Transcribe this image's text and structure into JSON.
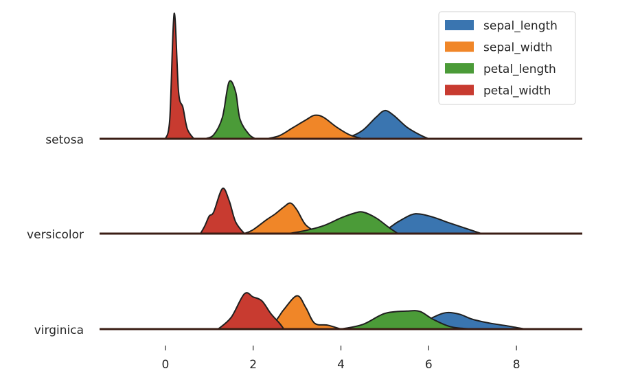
{
  "chart_data": {
    "type": "ridgeline-density",
    "title": "",
    "xlabel": "",
    "ylabel": "",
    "xlim": [
      -1.5,
      9.5
    ],
    "xticks": [
      0,
      2,
      4,
      6,
      8
    ],
    "grid": false,
    "legend_position": "top-right",
    "categories": [
      "setosa",
      "versicolor",
      "virginica"
    ],
    "series": [
      {
        "name": "sepal_length",
        "color": "#3a75b0"
      },
      {
        "name": "sepal_width",
        "color": "#f08628"
      },
      {
        "name": "petal_length",
        "color": "#4b9b38"
      },
      {
        "name": "petal_width",
        "color": "#c83b30"
      }
    ],
    "densities": {
      "setosa": {
        "sepal_length": [
          [
            3.9,
            0
          ],
          [
            4.2,
            0.05
          ],
          [
            4.5,
            0.22
          ],
          [
            4.8,
            0.55
          ],
          [
            5.0,
            0.72
          ],
          [
            5.2,
            0.6
          ],
          [
            5.5,
            0.3
          ],
          [
            5.8,
            0.1
          ],
          [
            6.0,
            0
          ]
        ],
        "sepal_width": [
          [
            2.3,
            0
          ],
          [
            2.6,
            0.08
          ],
          [
            2.9,
            0.28
          ],
          [
            3.2,
            0.48
          ],
          [
            3.4,
            0.6
          ],
          [
            3.6,
            0.55
          ],
          [
            3.9,
            0.3
          ],
          [
            4.2,
            0.1
          ],
          [
            4.5,
            0
          ]
        ],
        "petal_length": [
          [
            0.9,
            0
          ],
          [
            1.1,
            0.1
          ],
          [
            1.3,
            0.55
          ],
          [
            1.45,
            1.45
          ],
          [
            1.6,
            1.2
          ],
          [
            1.7,
            0.5
          ],
          [
            1.9,
            0.12
          ],
          [
            2.05,
            0
          ]
        ],
        "petal_width": [
          [
            0.0,
            0
          ],
          [
            0.1,
            0.5
          ],
          [
            0.2,
            3.2
          ],
          [
            0.3,
            1.2
          ],
          [
            0.4,
            0.8
          ],
          [
            0.5,
            0.25
          ],
          [
            0.65,
            0
          ]
        ]
      },
      "versicolor": {
        "sepal_length": [
          [
            4.7,
            0
          ],
          [
            5.0,
            0.08
          ],
          [
            5.3,
            0.3
          ],
          [
            5.6,
            0.48
          ],
          [
            5.8,
            0.5
          ],
          [
            6.1,
            0.42
          ],
          [
            6.4,
            0.3
          ],
          [
            6.8,
            0.15
          ],
          [
            7.2,
            0
          ]
        ],
        "sepal_width": [
          [
            1.8,
            0
          ],
          [
            2.0,
            0.1
          ],
          [
            2.3,
            0.35
          ],
          [
            2.5,
            0.5
          ],
          [
            2.7,
            0.68
          ],
          [
            2.85,
            0.78
          ],
          [
            3.0,
            0.6
          ],
          [
            3.2,
            0.22
          ],
          [
            3.5,
            0
          ]
        ],
        "petal_length": [
          [
            2.8,
            0
          ],
          [
            3.2,
            0.08
          ],
          [
            3.6,
            0.2
          ],
          [
            4.0,
            0.4
          ],
          [
            4.3,
            0.52
          ],
          [
            4.5,
            0.55
          ],
          [
            4.8,
            0.4
          ],
          [
            5.1,
            0.15
          ],
          [
            5.3,
            0
          ]
        ],
        "petal_width": [
          [
            0.8,
            0
          ],
          [
            0.9,
            0.2
          ],
          [
            1.0,
            0.45
          ],
          [
            1.1,
            0.55
          ],
          [
            1.3,
            1.15
          ],
          [
            1.45,
            0.85
          ],
          [
            1.6,
            0.3
          ],
          [
            1.8,
            0
          ]
        ]
      },
      "virginica": {
        "sepal_length": [
          [
            5.4,
            0
          ],
          [
            5.8,
            0.1
          ],
          [
            6.1,
            0.3
          ],
          [
            6.4,
            0.42
          ],
          [
            6.7,
            0.38
          ],
          [
            7.0,
            0.25
          ],
          [
            7.4,
            0.15
          ],
          [
            7.8,
            0.08
          ],
          [
            8.2,
            0
          ]
        ],
        "sepal_width": [
          [
            2.2,
            0
          ],
          [
            2.5,
            0.2
          ],
          [
            2.7,
            0.5
          ],
          [
            3.0,
            0.85
          ],
          [
            3.2,
            0.55
          ],
          [
            3.4,
            0.15
          ],
          [
            3.7,
            0.1
          ],
          [
            4.0,
            0
          ]
        ],
        "petal_length": [
          [
            4.0,
            0
          ],
          [
            4.5,
            0.12
          ],
          [
            5.0,
            0.4
          ],
          [
            5.5,
            0.46
          ],
          [
            5.8,
            0.45
          ],
          [
            6.1,
            0.25
          ],
          [
            6.5,
            0.06
          ],
          [
            7.0,
            0
          ]
        ],
        "petal_width": [
          [
            1.2,
            0
          ],
          [
            1.5,
            0.3
          ],
          [
            1.8,
            0.9
          ],
          [
            2.0,
            0.82
          ],
          [
            2.2,
            0.72
          ],
          [
            2.4,
            0.4
          ],
          [
            2.6,
            0.15
          ],
          [
            2.7,
            0
          ]
        ]
      }
    }
  }
}
